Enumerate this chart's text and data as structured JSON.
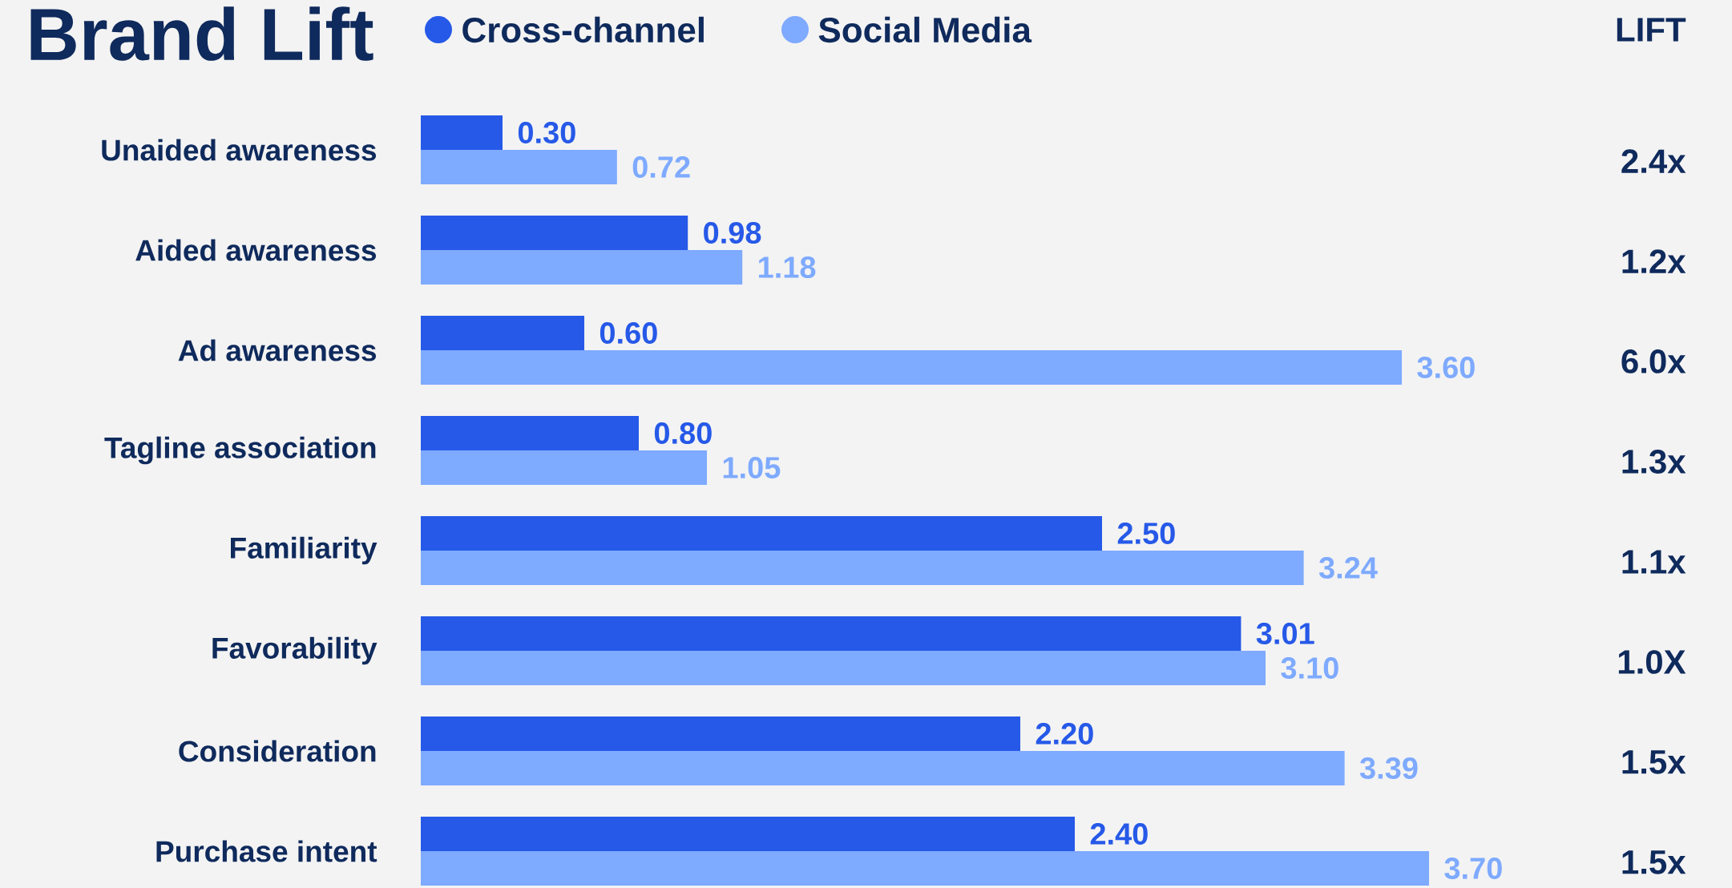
{
  "chart_data": {
    "type": "bar",
    "orientation": "horizontal",
    "title": "Brand Lift",
    "categories": [
      "Unaided awareness",
      "Aided awareness",
      "Ad awareness",
      "Tagline association",
      "Familiarity",
      "Favorability",
      "Consideration",
      "Purchase intent"
    ],
    "series": [
      {
        "name": "Cross-channel",
        "color": "#2659e8",
        "values": [
          0.3,
          0.98,
          0.6,
          0.8,
          2.5,
          3.01,
          2.2,
          2.4
        ],
        "value_labels": [
          "0.30",
          "0.98",
          "0.60",
          "0.80",
          "2.50",
          "3.01",
          "2.20",
          "2.40"
        ]
      },
      {
        "name": "Social Media",
        "color": "#7eaaff",
        "values": [
          0.72,
          1.18,
          3.6,
          1.05,
          3.24,
          3.1,
          3.39,
          3.7
        ],
        "value_labels": [
          "0.72",
          "1.18",
          "3.60",
          "1.05",
          "3.24",
          "3.10",
          "3.39",
          "3.70"
        ]
      }
    ],
    "annotations": [
      "LIFT",
      "2.4x",
      "1.2x",
      "6.0x",
      "1.3x",
      "1.1x",
      "1.0X",
      "1.5x",
      "1.5x"
    ],
    "legend": "top"
  }
}
